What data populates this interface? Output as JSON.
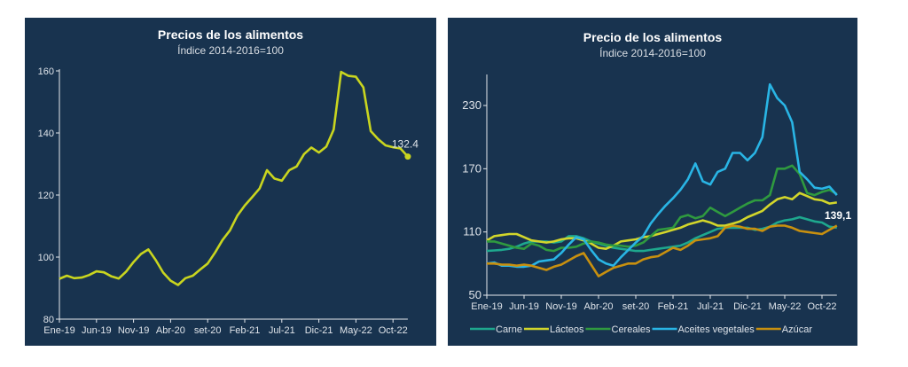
{
  "chart_data": [
    {
      "type": "line",
      "title": "Precios de los alimentos",
      "subtitle": "Índice 2014-2016=100",
      "x_tick_labels": [
        "Ene-19",
        "Jun-19",
        "Nov-19",
        "Abr-20",
        "set-20",
        "Feb-21",
        "Jul-21",
        "Dic-21",
        "May-22",
        "Oct-22"
      ],
      "x_start": "Ene-19",
      "x_end": "Dic-22",
      "x_step": "monthly",
      "ylim": [
        80,
        160
      ],
      "y_ticks": [
        80,
        100,
        120,
        140,
        160
      ],
      "grid": false,
      "series": [
        {
          "color": "#c9d51f",
          "values": [
            93.0,
            94.0,
            93.2,
            93.4,
            94.2,
            95.4,
            95.1,
            93.8,
            93.1,
            95.3,
            98.4,
            101.0,
            102.5,
            99.0,
            95.0,
            92.4,
            91.0,
            93.2,
            94.0,
            96.0,
            97.9,
            101.5,
            105.5,
            108.6,
            113.3,
            116.6,
            119.3,
            122.1,
            128.0,
            125.3,
            124.6,
            128.0,
            129.2,
            133.2,
            135.3,
            133.7,
            135.6,
            141.1,
            159.7,
            158.4,
            158.1,
            154.7,
            140.6,
            138.0,
            136.0,
            135.4,
            135.0,
            132.4
          ]
        }
      ],
      "annotation": "132.4"
    },
    {
      "type": "line",
      "title": "Precio de los alimentos",
      "subtitle": "Índice 2014-2016=100",
      "x_tick_labels": [
        "Ene-19",
        "Jun-19",
        "Nov-19",
        "Abr-20",
        "set-20",
        "Feb-21",
        "Jul-21",
        "Dic-21",
        "May-22",
        "Oct-22"
      ],
      "x_start": "Ene-19",
      "x_end": "Dic-22",
      "x_step": "monthly",
      "ylim": [
        50,
        250
      ],
      "y_ticks": [
        50,
        110,
        170,
        230
      ],
      "grid": false,
      "legend": "bottom",
      "annotation": "139,1",
      "series": [
        {
          "name": "Carne",
          "color": "#1ea88e",
          "values": [
            92,
            92.5,
            93,
            94,
            96,
            99,
            101,
            101,
            101,
            100,
            101,
            106,
            106,
            104,
            101,
            99,
            97,
            95,
            94,
            93,
            92,
            92,
            93,
            94,
            95,
            96,
            97,
            100,
            104,
            107,
            110,
            113,
            114,
            114,
            114,
            114,
            112,
            113,
            115,
            119,
            121,
            122,
            124,
            122,
            120,
            119,
            115,
            114
          ]
        },
        {
          "name": "Lácteos",
          "color": "#d2d62b",
          "values": [
            102,
            106,
            107,
            108,
            108,
            105,
            102,
            101,
            100,
            101,
            103,
            104,
            104,
            102,
            99,
            95,
            94,
            97,
            101,
            102,
            103,
            105,
            106,
            108,
            110,
            112,
            114,
            117,
            119,
            121,
            119,
            116,
            116,
            118,
            120,
            124,
            127,
            130,
            136,
            141,
            143,
            141,
            147,
            144,
            141,
            140,
            137,
            138
          ]
        },
        {
          "name": "Cereales",
          "color": "#2f9a3f",
          "values": [
            101,
            101,
            99,
            97,
            95,
            94,
            99,
            97,
            93,
            92,
            95,
            95,
            96,
            99,
            101,
            100,
            98,
            97,
            97,
            96,
            97,
            100,
            106,
            112,
            113,
            114,
            124,
            126,
            123,
            125,
            133,
            129,
            125,
            129,
            133,
            137,
            140,
            140,
            145,
            170,
            170,
            173,
            165,
            147,
            145,
            148,
            150,
            146
          ]
        },
        {
          "name": "Aceites vegetales",
          "color": "#29b5e5",
          "values": [
            80,
            81,
            78,
            78,
            77,
            77,
            78,
            82,
            83,
            84,
            90,
            98,
            105,
            103,
            93,
            84,
            80,
            78,
            86,
            93,
            100,
            106,
            118,
            127,
            135,
            142,
            150,
            160,
            175,
            158,
            155,
            167,
            170,
            185,
            185,
            178,
            185,
            200,
            250,
            237,
            230,
            214,
            167,
            160,
            152,
            151,
            153,
            145
          ]
        },
        {
          "name": "Azúcar",
          "color": "#c8900f",
          "values": [
            80,
            80,
            79,
            79,
            78,
            79,
            78,
            76,
            74,
            77,
            79,
            83,
            87,
            90,
            79,
            68,
            72,
            76,
            78,
            80,
            80,
            84,
            86,
            87,
            91,
            95,
            93,
            97,
            102,
            103,
            104,
            106,
            114,
            116,
            115,
            113,
            113,
            111,
            115,
            116,
            116,
            114,
            111,
            110,
            109,
            108,
            112,
            116
          ]
        }
      ]
    }
  ]
}
